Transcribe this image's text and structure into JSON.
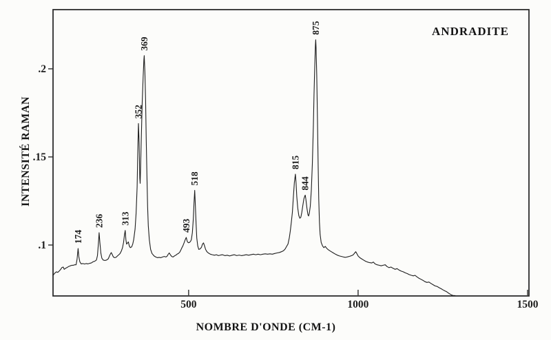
{
  "figure": {
    "background": "#fcfcfa",
    "ink_color": "#1c1c1c",
    "frame_color": "#2b2b2b"
  },
  "chart_data": {
    "type": "line",
    "title": "ANDRADITE",
    "xlabel": "NOMBRE D'ONDE (CM-1)",
    "ylabel": "INTENSITÉ RAMAN",
    "xlim": [
      100,
      1500
    ],
    "ylim": [
      0.071,
      0.234
    ],
    "grid": false,
    "legend": "none",
    "x_ticks": [
      {
        "value": 500,
        "label": "500"
      },
      {
        "value": 1000,
        "label": "1000"
      },
      {
        "value": 1500,
        "label": "1500"
      }
    ],
    "y_ticks": [
      {
        "value": 0.1,
        "label": ".1"
      },
      {
        "value": 0.15,
        "label": ".15"
      },
      {
        "value": 0.2,
        "label": ".2"
      }
    ],
    "peaks": [
      {
        "label": "174",
        "x": 174,
        "y": 0.098
      },
      {
        "label": "236",
        "x": 236,
        "y": 0.107
      },
      {
        "label": "313",
        "x": 313,
        "y": 0.1083
      },
      {
        "label": "352",
        "x": 352,
        "y": 0.169
      },
      {
        "label": "369",
        "x": 369,
        "y": 0.2075
      },
      {
        "label": "493",
        "x": 493,
        "y": 0.1043
      },
      {
        "label": "518",
        "x": 518,
        "y": 0.131
      },
      {
        "label": "815",
        "x": 815,
        "y": 0.1402
      },
      {
        "label": "844",
        "x": 844,
        "y": 0.1283
      },
      {
        "label": "875",
        "x": 875,
        "y": 0.2165
      }
    ],
    "series": [
      {
        "name": "andradite-raman-spectrum",
        "points": [
          [
            100,
            0.0828
          ],
          [
            103,
            0.0835
          ],
          [
            106,
            0.0842
          ],
          [
            110,
            0.0848
          ],
          [
            114,
            0.0845
          ],
          [
            118,
            0.0852
          ],
          [
            122,
            0.086
          ],
          [
            126,
            0.0872
          ],
          [
            130,
            0.0875
          ],
          [
            133,
            0.0862
          ],
          [
            137,
            0.0868
          ],
          [
            141,
            0.0872
          ],
          [
            146,
            0.0878
          ],
          [
            151,
            0.0882
          ],
          [
            156,
            0.0885
          ],
          [
            160,
            0.0885
          ],
          [
            164,
            0.0888
          ],
          [
            168,
            0.0888
          ],
          [
            171,
            0.092
          ],
          [
            174,
            0.098
          ],
          [
            176,
            0.0935
          ],
          [
            179,
            0.0905
          ],
          [
            183,
            0.0893
          ],
          [
            188,
            0.0895
          ],
          [
            193,
            0.0892
          ],
          [
            198,
            0.0895
          ],
          [
            203,
            0.0893
          ],
          [
            208,
            0.0896
          ],
          [
            213,
            0.0898
          ],
          [
            218,
            0.0905
          ],
          [
            223,
            0.0908
          ],
          [
            228,
            0.0915
          ],
          [
            231,
            0.094
          ],
          [
            234,
            0.101
          ],
          [
            236,
            0.107
          ],
          [
            238,
            0.102
          ],
          [
            241,
            0.0955
          ],
          [
            244,
            0.0925
          ],
          [
            248,
            0.0915
          ],
          [
            253,
            0.0912
          ],
          [
            258,
            0.0915
          ],
          [
            263,
            0.0922
          ],
          [
            267,
            0.094
          ],
          [
            270,
            0.0952
          ],
          [
            272,
            0.0957
          ],
          [
            275,
            0.0945
          ],
          [
            278,
            0.0932
          ],
          [
            282,
            0.0928
          ],
          [
            286,
            0.093
          ],
          [
            290,
            0.0938
          ],
          [
            294,
            0.0945
          ],
          [
            298,
            0.0952
          ],
          [
            302,
            0.0968
          ],
          [
            305,
            0.0985
          ],
          [
            308,
            0.1015
          ],
          [
            311,
            0.106
          ],
          [
            313,
            0.1083
          ],
          [
            315,
            0.103
          ],
          [
            317,
            0.1005
          ],
          [
            320,
            0.1012
          ],
          [
            322,
            0.1018
          ],
          [
            325,
            0.0995
          ],
          [
            328,
            0.0985
          ],
          [
            332,
            0.099
          ],
          [
            335,
            0.1005
          ],
          [
            338,
            0.103
          ],
          [
            342,
            0.109
          ],
          [
            345,
            0.118
          ],
          [
            348,
            0.133
          ],
          [
            350,
            0.152
          ],
          [
            352,
            0.169
          ],
          [
            354,
            0.158
          ],
          [
            356,
            0.138
          ],
          [
            357,
            0.135
          ],
          [
            358,
            0.142
          ],
          [
            360,
            0.158
          ],
          [
            363,
            0.18
          ],
          [
            366,
            0.196
          ],
          [
            368,
            0.205
          ],
          [
            369,
            0.2075
          ],
          [
            371,
            0.198
          ],
          [
            373,
            0.182
          ],
          [
            375,
            0.16
          ],
          [
            377,
            0.14
          ],
          [
            379,
            0.122
          ],
          [
            381,
            0.111
          ],
          [
            384,
            0.103
          ],
          [
            388,
            0.0975
          ],
          [
            392,
            0.0952
          ],
          [
            398,
            0.0938
          ],
          [
            403,
            0.0932
          ],
          [
            408,
            0.0928
          ],
          [
            413,
            0.093
          ],
          [
            418,
            0.0928
          ],
          [
            423,
            0.0932
          ],
          [
            428,
            0.0935
          ],
          [
            433,
            0.0932
          ],
          [
            437,
            0.0938
          ],
          [
            440,
            0.0948
          ],
          [
            443,
            0.0955
          ],
          [
            446,
            0.0945
          ],
          [
            450,
            0.0935
          ],
          [
            454,
            0.0932
          ],
          [
            458,
            0.0938
          ],
          [
            462,
            0.0942
          ],
          [
            466,
            0.0948
          ],
          [
            470,
            0.0952
          ],
          [
            474,
            0.096
          ],
          [
            478,
            0.0975
          ],
          [
            481,
            0.0988
          ],
          [
            483,
            0.0995
          ],
          [
            487,
            0.1015
          ],
          [
            490,
            0.103
          ],
          [
            493,
            0.1043
          ],
          [
            496,
            0.102
          ],
          [
            499,
            0.1013
          ],
          [
            503,
            0.1015
          ],
          [
            506,
            0.1022
          ],
          [
            508,
            0.103
          ],
          [
            511,
            0.107
          ],
          [
            514,
            0.115
          ],
          [
            516,
            0.124
          ],
          [
            518,
            0.131
          ],
          [
            520,
            0.122
          ],
          [
            522,
            0.112
          ],
          [
            524,
            0.104
          ],
          [
            527,
            0.0995
          ],
          [
            530,
            0.0975
          ],
          [
            534,
            0.0978
          ],
          [
            538,
            0.0988
          ],
          [
            541,
            0.1005
          ],
          [
            544,
            0.1012
          ],
          [
            547,
            0.0995
          ],
          [
            550,
            0.0975
          ],
          [
            554,
            0.0962
          ],
          [
            558,
            0.0955
          ],
          [
            564,
            0.0948
          ],
          [
            570,
            0.0945
          ],
          [
            576,
            0.0942
          ],
          [
            582,
            0.0945
          ],
          [
            588,
            0.094
          ],
          [
            594,
            0.0943
          ],
          [
            600,
            0.0945
          ],
          [
            607,
            0.094
          ],
          [
            614,
            0.0942
          ],
          [
            621,
            0.0938
          ],
          [
            628,
            0.0942
          ],
          [
            635,
            0.0945
          ],
          [
            642,
            0.094
          ],
          [
            649,
            0.0943
          ],
          [
            656,
            0.094
          ],
          [
            663,
            0.0942
          ],
          [
            670,
            0.0945
          ],
          [
            677,
            0.0942
          ],
          [
            684,
            0.0945
          ],
          [
            691,
            0.0948
          ],
          [
            698,
            0.0945
          ],
          [
            705,
            0.0948
          ],
          [
            712,
            0.0945
          ],
          [
            719,
            0.0948
          ],
          [
            726,
            0.095
          ],
          [
            733,
            0.0948
          ],
          [
            740,
            0.095
          ],
          [
            747,
            0.0948
          ],
          [
            754,
            0.0952
          ],
          [
            761,
            0.0955
          ],
          [
            768,
            0.0958
          ],
          [
            774,
            0.0962
          ],
          [
            780,
            0.0968
          ],
          [
            785,
            0.0978
          ],
          [
            789,
            0.0992
          ],
          [
            793,
            0.1005
          ],
          [
            797,
            0.104
          ],
          [
            800,
            0.108
          ],
          [
            803,
            0.113
          ],
          [
            806,
            0.1185
          ],
          [
            809,
            0.127
          ],
          [
            812,
            0.1355
          ],
          [
            815,
            0.1402
          ],
          [
            817,
            0.135
          ],
          [
            819,
            0.1275
          ],
          [
            822,
            0.121
          ],
          [
            825,
            0.1168
          ],
          [
            828,
            0.1152
          ],
          [
            831,
            0.1158
          ],
          [
            834,
            0.1185
          ],
          [
            837,
            0.1225
          ],
          [
            840,
            0.1262
          ],
          [
            843,
            0.128
          ],
          [
            844,
            0.1283
          ],
          [
            846,
            0.126
          ],
          [
            849,
            0.121
          ],
          [
            852,
            0.1172
          ],
          [
            854,
            0.1165
          ],
          [
            856,
            0.118
          ],
          [
            859,
            0.122
          ],
          [
            862,
            0.131
          ],
          [
            865,
            0.146
          ],
          [
            868,
            0.168
          ],
          [
            870,
            0.185
          ],
          [
            872,
            0.2
          ],
          [
            874,
            0.213
          ],
          [
            875,
            0.2165
          ],
          [
            876,
            0.212
          ],
          [
            878,
            0.196
          ],
          [
            880,
            0.172
          ],
          [
            882,
            0.146
          ],
          [
            884,
            0.126
          ],
          [
            886,
            0.113
          ],
          [
            888,
            0.106
          ],
          [
            891,
            0.1015
          ],
          [
            895,
            0.0995
          ],
          [
            899,
            0.0985
          ],
          [
            903,
            0.0992
          ],
          [
            907,
            0.0982
          ],
          [
            911,
            0.0975
          ],
          [
            916,
            0.0968
          ],
          [
            921,
            0.0962
          ],
          [
            927,
            0.0955
          ],
          [
            933,
            0.0948
          ],
          [
            939,
            0.0942
          ],
          [
            945,
            0.0938
          ],
          [
            951,
            0.0935
          ],
          [
            957,
            0.0932
          ],
          [
            963,
            0.093
          ],
          [
            969,
            0.0933
          ],
          [
            975,
            0.0936
          ],
          [
            981,
            0.094
          ],
          [
            986,
            0.0945
          ],
          [
            990,
            0.0955
          ],
          [
            993,
            0.0962
          ],
          [
            996,
            0.0952
          ],
          [
            1000,
            0.0938
          ],
          [
            1005,
            0.0928
          ],
          [
            1010,
            0.0922
          ],
          [
            1016,
            0.0915
          ],
          [
            1022,
            0.0908
          ],
          [
            1028,
            0.0903
          ],
          [
            1034,
            0.09
          ],
          [
            1040,
            0.0898
          ],
          [
            1045,
            0.0903
          ],
          [
            1050,
            0.0893
          ],
          [
            1056,
            0.0888
          ],
          [
            1062,
            0.0885
          ],
          [
            1068,
            0.0882
          ],
          [
            1074,
            0.0885
          ],
          [
            1080,
            0.0888
          ],
          [
            1085,
            0.0878
          ],
          [
            1091,
            0.0872
          ],
          [
            1097,
            0.0875
          ],
          [
            1103,
            0.0868
          ],
          [
            1109,
            0.0862
          ],
          [
            1115,
            0.0866
          ],
          [
            1121,
            0.0858
          ],
          [
            1127,
            0.0852
          ],
          [
            1133,
            0.0848
          ],
          [
            1139,
            0.0842
          ],
          [
            1145,
            0.0838
          ],
          [
            1151,
            0.0832
          ],
          [
            1157,
            0.0828
          ],
          [
            1163,
            0.0825
          ],
          [
            1168,
            0.0828
          ],
          [
            1173,
            0.082
          ],
          [
            1179,
            0.0812
          ],
          [
            1185,
            0.0806
          ],
          [
            1191,
            0.08
          ],
          [
            1197,
            0.0792
          ],
          [
            1203,
            0.0788
          ],
          [
            1209,
            0.079
          ],
          [
            1215,
            0.0782
          ],
          [
            1221,
            0.0775
          ],
          [
            1227,
            0.0768
          ],
          [
            1233,
            0.0765
          ],
          [
            1239,
            0.0758
          ],
          [
            1245,
            0.0752
          ],
          [
            1251,
            0.0745
          ],
          [
            1256,
            0.074
          ],
          [
            1261,
            0.0735
          ],
          [
            1266,
            0.0728
          ],
          [
            1271,
            0.0722
          ],
          [
            1276,
            0.0716
          ],
          [
            1281,
            0.0712
          ],
          [
            1286,
            0.0711
          ]
        ]
      }
    ]
  }
}
